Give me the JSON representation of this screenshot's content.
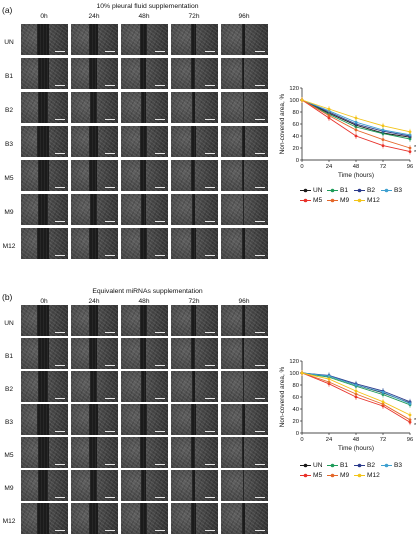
{
  "panels": [
    {
      "tag": "(a)",
      "title": "10% pleural fluid supplementation",
      "times": [
        "0h",
        "24h",
        "48h",
        "72h",
        "96h"
      ],
      "rows": [
        "UN",
        "B1",
        "B2",
        "B3",
        "M5",
        "M9",
        "M12"
      ]
    },
    {
      "tag": "(b)",
      "title": "Equivalent miRNAs supplementation",
      "times": [
        "0h",
        "24h",
        "48h",
        "72h",
        "96h"
      ],
      "rows": [
        "UN",
        "B1",
        "B2",
        "B3",
        "M5",
        "M9",
        "M12"
      ]
    }
  ],
  "colors": {
    "UN": "#1a1a1a",
    "B1": "#1e9c5a",
    "B2": "#2a3a8c",
    "B3": "#3fa0d0",
    "M5": "#e8312a",
    "M9": "#e4672a",
    "M12": "#f3c419"
  },
  "chart_data": [
    {
      "type": "line",
      "title": "",
      "xlabel": "Time (hours)",
      "ylabel": "Non-covered area, %",
      "x": [
        0,
        24,
        48,
        72,
        96
      ],
      "xticks": [
        "0",
        "24",
        "48",
        "72",
        "96"
      ],
      "yticks": [
        "0",
        "20",
        "40",
        "60",
        "80",
        "100",
        "120"
      ],
      "xlim": [
        0,
        96
      ],
      "ylim": [
        0,
        120
      ],
      "grid": false,
      "legend_position": "bottom",
      "annotations": [
        "*",
        "*"
      ],
      "series": [
        {
          "name": "UN",
          "values": [
            100,
            78,
            58,
            45,
            38
          ]
        },
        {
          "name": "B1",
          "values": [
            100,
            76,
            55,
            44,
            35
          ]
        },
        {
          "name": "B2",
          "values": [
            100,
            80,
            60,
            48,
            40
          ]
        },
        {
          "name": "B3",
          "values": [
            100,
            82,
            63,
            50,
            42
          ]
        },
        {
          "name": "M5",
          "values": [
            100,
            70,
            40,
            24,
            14
          ]
        },
        {
          "name": "M9",
          "values": [
            100,
            74,
            50,
            34,
            20
          ]
        },
        {
          "name": "M12",
          "values": [
            100,
            85,
            70,
            57,
            47
          ]
        }
      ]
    },
    {
      "type": "line",
      "title": "",
      "xlabel": "Time (hours)",
      "ylabel": "Non-covered area, %",
      "x": [
        0,
        24,
        48,
        72,
        96
      ],
      "xticks": [
        "0",
        "24",
        "48",
        "72",
        "96"
      ],
      "yticks": [
        "0",
        "20",
        "40",
        "60",
        "80",
        "100",
        "120"
      ],
      "xlim": [
        0,
        96
      ],
      "ylim": [
        0,
        120
      ],
      "grid": false,
      "legend_position": "bottom",
      "annotations": [
        "*",
        "*"
      ],
      "series": [
        {
          "name": "UN",
          "values": [
            100,
            95,
            80,
            67,
            50
          ]
        },
        {
          "name": "B1",
          "values": [
            100,
            93,
            78,
            64,
            47
          ]
        },
        {
          "name": "B2",
          "values": [
            100,
            96,
            82,
            70,
            52
          ]
        },
        {
          "name": "B3",
          "values": [
            100,
            95,
            80,
            68,
            49
          ]
        },
        {
          "name": "M5",
          "values": [
            100,
            82,
            60,
            45,
            18
          ]
        },
        {
          "name": "M9",
          "values": [
            100,
            85,
            65,
            48,
            22
          ]
        },
        {
          "name": "M12",
          "values": [
            100,
            90,
            70,
            52,
            30
          ]
        }
      ]
    }
  ]
}
